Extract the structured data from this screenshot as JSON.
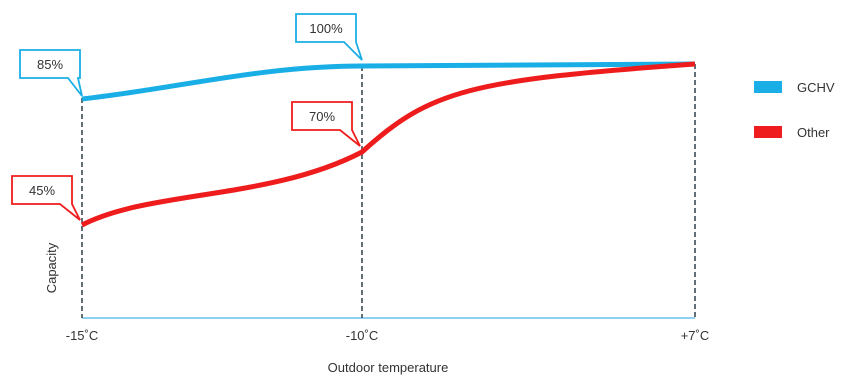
{
  "chart_data": {
    "type": "line",
    "x_ticks": [
      "-15˚C",
      "-10˚C",
      "+7˚C"
    ],
    "xlabel": "Outdoor temperature",
    "ylabel": "Capacity",
    "ylim": [
      30,
      105
    ],
    "grid": false,
    "legend_position": "right",
    "series": [
      {
        "name": "GCHV",
        "color": "#1aaee6",
        "points": [
          {
            "x": "-15˚C",
            "y": 85
          },
          {
            "x": "-10˚C",
            "y": 100
          },
          {
            "x": "+7˚C",
            "y": 100
          }
        ],
        "callouts": [
          {
            "x": "-15˚C",
            "label": "85%"
          },
          {
            "x": "-10˚C",
            "label": "100%"
          }
        ]
      },
      {
        "name": "Other",
        "color": "#ee1c1c",
        "points": [
          {
            "x": "-15˚C",
            "y": 45
          },
          {
            "x": "-10˚C",
            "y": 70
          },
          {
            "x": "+7˚C",
            "y": 100
          }
        ],
        "callouts": [
          {
            "x": "-15˚C",
            "label": "45%"
          },
          {
            "x": "-10˚C",
            "label": "70%"
          }
        ]
      }
    ]
  }
}
